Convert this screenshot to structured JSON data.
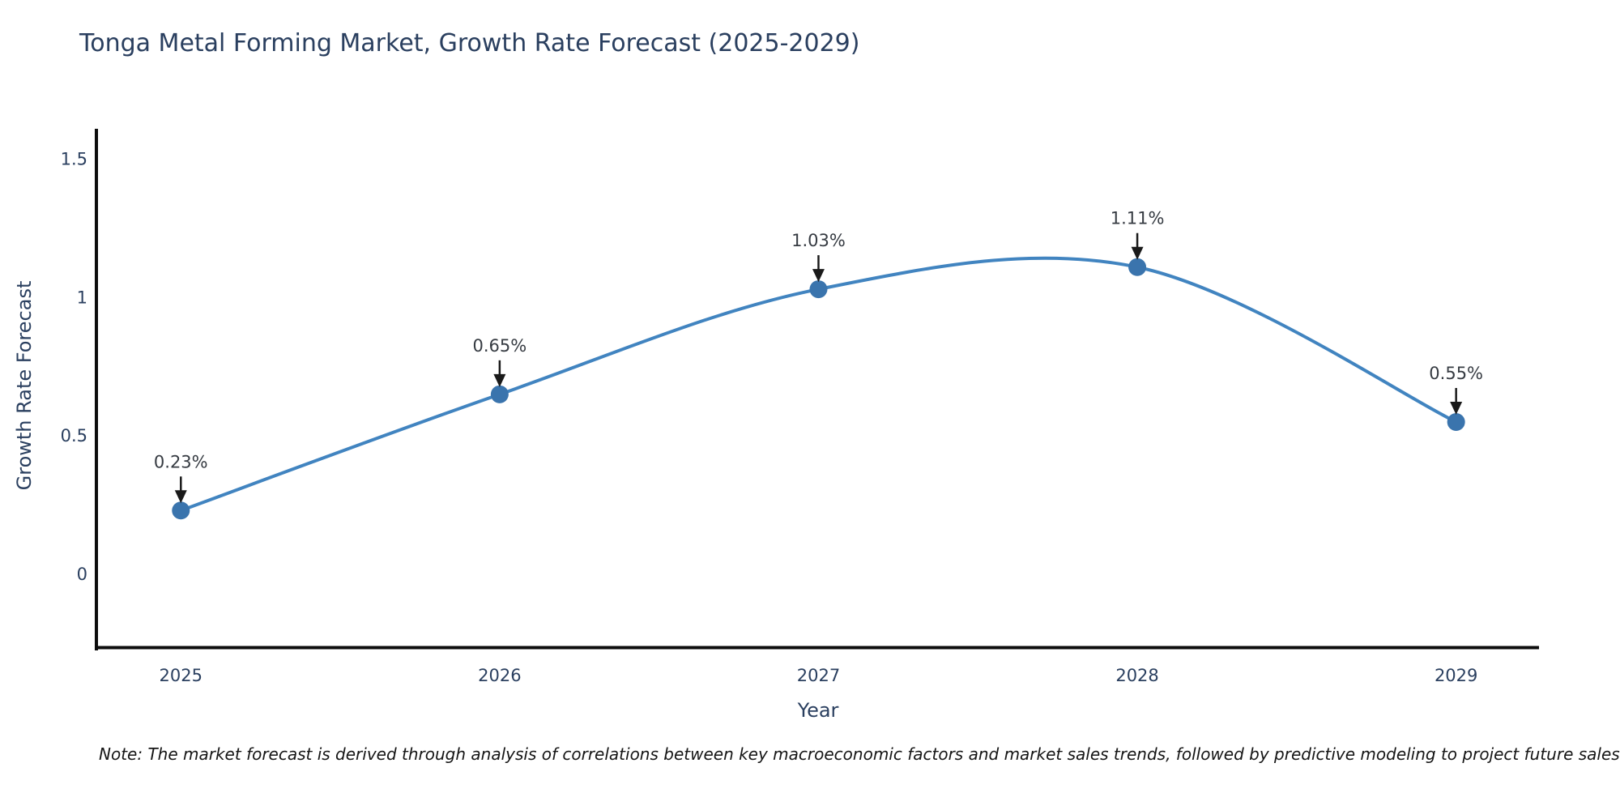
{
  "title": "Tonga Metal Forming Market, Growth Rate Forecast (2025-2029)",
  "note": "Note: The market forecast is derived through analysis of correlations between key macroeconomic factors and market sales trends, followed by predictive modeling to project future sales",
  "chart_data": {
    "type": "line",
    "title": "Tonga Metal Forming Market, Growth Rate Forecast (2025-2029)",
    "xlabel": "Year",
    "ylabel": "Growth Rate Forecast",
    "x": [
      2025,
      2026,
      2027,
      2028,
      2029
    ],
    "series": [
      {
        "name": "Growth Rate Forecast",
        "values": [
          0.23,
          0.65,
          1.03,
          1.11,
          0.55
        ]
      }
    ],
    "point_labels": [
      "0.23%",
      "0.65%",
      "1.03%",
      "1.11%",
      "0.55%"
    ],
    "x_tick_labels": [
      "2025",
      "2026",
      "2027",
      "2028",
      "2029"
    ],
    "y_ticks": [
      0,
      0.5,
      1,
      1.5
    ],
    "y_tick_labels": [
      "0",
      "0.5",
      "1",
      "1.5"
    ],
    "xlim": [
      2024.73,
      2029.26
    ],
    "ylim": [
      -0.27,
      1.61
    ],
    "line_shape": "spline",
    "grid": false,
    "legend_position": "none",
    "colors": {
      "line": "#4184c0",
      "marker": "#3a74ad",
      "axis_line": "#0d0d0d",
      "tick_text": "#2a3f5f",
      "annotation_text": "#363b42",
      "arrow": "#1a1a1a",
      "title_text": "#2a3f5f"
    }
  }
}
